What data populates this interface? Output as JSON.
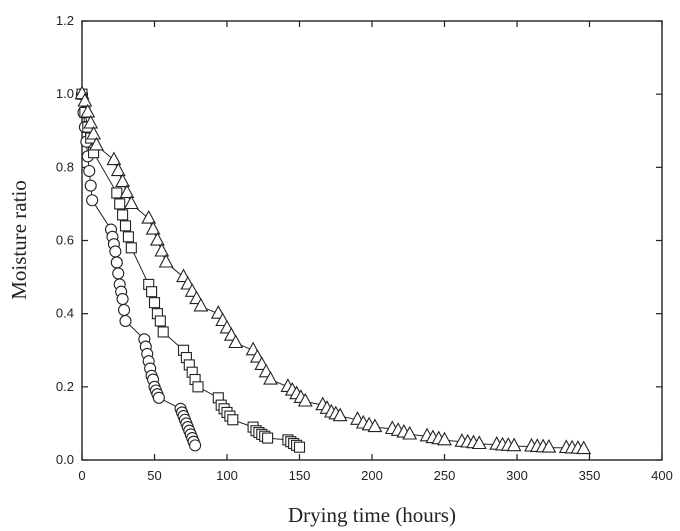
{
  "chart_data": {
    "type": "scatter",
    "title": "",
    "xlabel": "Drying time (hours)",
    "ylabel": "Moisture ratio",
    "xlim": [
      0,
      400
    ],
    "ylim": [
      0,
      1.2
    ],
    "xticks": [
      0,
      50,
      100,
      150,
      200,
      250,
      300,
      350,
      400
    ],
    "yticks": [
      0.0,
      0.2,
      0.4,
      0.6,
      0.8,
      1.0,
      1.2
    ],
    "xtick_labels": [
      "0",
      "50",
      "100",
      "150",
      "200",
      "250",
      "300",
      "350",
      "400"
    ],
    "ytick_labels": [
      "0.0",
      "0.2",
      "0.4",
      "0.6",
      "0.8",
      "1.0",
      "1.2"
    ],
    "grid": false,
    "legend": "none",
    "series": [
      {
        "marker": "circle",
        "line": true,
        "x": [
          0,
          1,
          2,
          3,
          4,
          5,
          6,
          7,
          20,
          21,
          22,
          23,
          24,
          25,
          26,
          27,
          28,
          29,
          30,
          43,
          44,
          45,
          46,
          47,
          48,
          49,
          50,
          51,
          52,
          53,
          68,
          69,
          70,
          71,
          72,
          73,
          74,
          75,
          76,
          77,
          78
        ],
        "y": [
          1.0,
          0.95,
          0.91,
          0.87,
          0.83,
          0.79,
          0.75,
          0.71,
          0.63,
          0.61,
          0.59,
          0.57,
          0.54,
          0.51,
          0.48,
          0.46,
          0.44,
          0.41,
          0.38,
          0.33,
          0.31,
          0.29,
          0.27,
          0.25,
          0.23,
          0.22,
          0.2,
          0.19,
          0.18,
          0.17,
          0.14,
          0.13,
          0.12,
          0.11,
          0.1,
          0.09,
          0.08,
          0.07,
          0.06,
          0.05,
          0.04
        ]
      },
      {
        "marker": "square",
        "line": true,
        "x": [
          0,
          2,
          4,
          6,
          8,
          24,
          26,
          28,
          30,
          32,
          34,
          46,
          48,
          50,
          52,
          54,
          56,
          70,
          72,
          74,
          76,
          78,
          80,
          94,
          96,
          98,
          100,
          102,
          104,
          118,
          120,
          122,
          124,
          126,
          128,
          142,
          144,
          146,
          148,
          150
        ],
        "y": [
          1.0,
          0.95,
          0.91,
          0.88,
          0.84,
          0.73,
          0.7,
          0.67,
          0.64,
          0.61,
          0.58,
          0.48,
          0.46,
          0.43,
          0.4,
          0.38,
          0.35,
          0.3,
          0.28,
          0.26,
          0.24,
          0.22,
          0.2,
          0.17,
          0.15,
          0.14,
          0.13,
          0.12,
          0.11,
          0.09,
          0.08,
          0.075,
          0.07,
          0.065,
          0.06,
          0.055,
          0.05,
          0.045,
          0.04,
          0.035
        ]
      },
      {
        "marker": "triangle",
        "line": true,
        "x": [
          0,
          2,
          4,
          6,
          8,
          10,
          22,
          25,
          28,
          31,
          34,
          46,
          49,
          52,
          55,
          58,
          70,
          73,
          76,
          79,
          82,
          94,
          97,
          100,
          103,
          106,
          118,
          121,
          124,
          127,
          130,
          142,
          145,
          148,
          151,
          154,
          166,
          169,
          172,
          175,
          178,
          190,
          194,
          198,
          202,
          214,
          218,
          222,
          226,
          238,
          242,
          246,
          250,
          262,
          266,
          270,
          274,
          286,
          290,
          294,
          298,
          310,
          314,
          318,
          322,
          334,
          338,
          342,
          346
        ],
        "y": [
          1.0,
          0.98,
          0.95,
          0.92,
          0.89,
          0.86,
          0.82,
          0.79,
          0.76,
          0.73,
          0.7,
          0.66,
          0.63,
          0.6,
          0.57,
          0.54,
          0.5,
          0.48,
          0.46,
          0.44,
          0.42,
          0.4,
          0.38,
          0.36,
          0.34,
          0.32,
          0.3,
          0.28,
          0.26,
          0.24,
          0.22,
          0.2,
          0.19,
          0.18,
          0.17,
          0.16,
          0.15,
          0.14,
          0.13,
          0.125,
          0.12,
          0.11,
          0.1,
          0.095,
          0.09,
          0.085,
          0.08,
          0.075,
          0.07,
          0.065,
          0.06,
          0.057,
          0.054,
          0.05,
          0.048,
          0.046,
          0.044,
          0.042,
          0.04,
          0.039,
          0.038,
          0.037,
          0.036,
          0.035,
          0.034,
          0.033,
          0.032,
          0.031,
          0.03
        ]
      }
    ]
  }
}
